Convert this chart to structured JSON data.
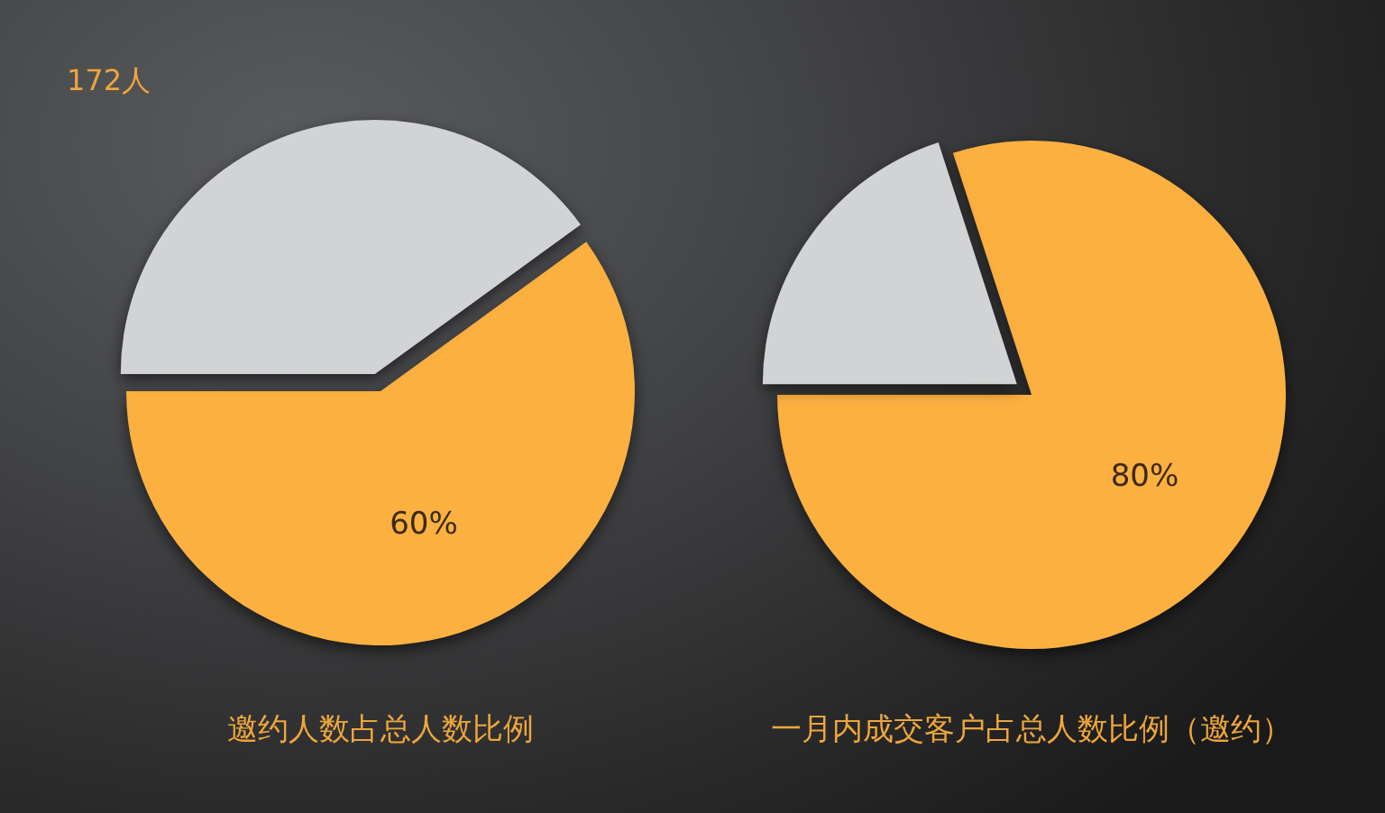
{
  "chart_data": [
    {
      "type": "pie",
      "title": "邀约人数占总人数比例",
      "categories": [
        null,
        null
      ],
      "values": [
        60,
        40
      ],
      "colors": [
        "#fbb040",
        "#d1d3d4"
      ],
      "value_labels": [
        "60%",
        null
      ],
      "annotations": [
        "172人"
      ]
    },
    {
      "type": "pie",
      "title": "一月内成交客户占总人数比例（邀约）",
      "categories": [
        null,
        null
      ],
      "values": [
        80,
        20
      ],
      "colors": [
        "#fbb040",
        "#d1d3d4"
      ],
      "value_labels": [
        "80%",
        null
      ]
    }
  ]
}
